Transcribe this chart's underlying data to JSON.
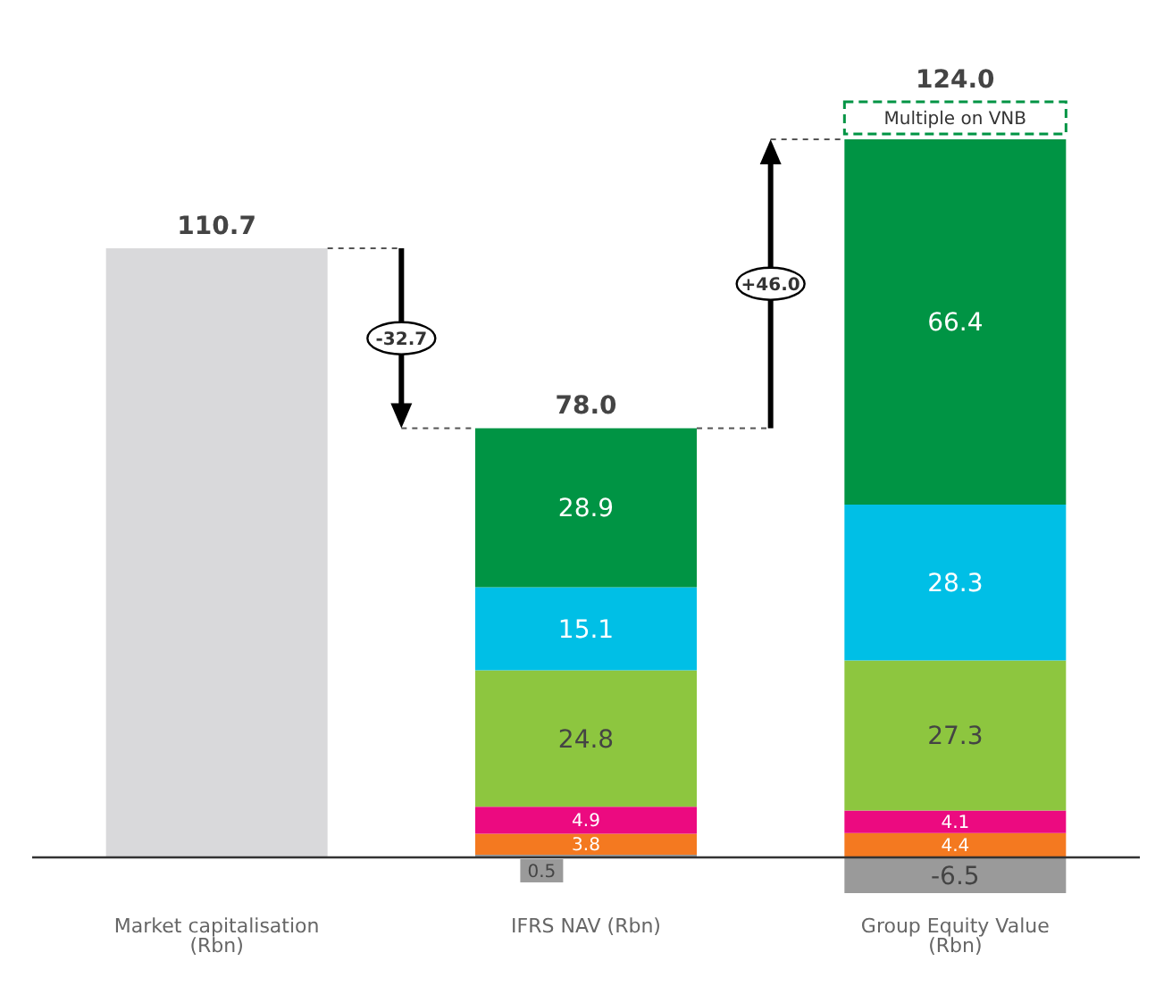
{
  "chart_data": {
    "type": "bar",
    "stacked": true,
    "categories": [
      "Market capitalisation (Rbn)",
      "IFRS NAV (Rbn)",
      "Group Equity Value (Rbn)"
    ],
    "series": [
      {
        "color": "#d9d9db",
        "values": [
          110.7,
          null,
          null
        ],
        "value_labels": [
          null,
          null,
          null
        ]
      },
      {
        "color": "#9a9a9a",
        "values": [
          null,
          0.5,
          -6.5
        ],
        "value_labels": [
          null,
          "0.5",
          "-6.5"
        ]
      },
      {
        "color": "#f47920",
        "values": [
          null,
          3.8,
          4.4
        ],
        "value_labels": [
          null,
          "3.8",
          "4.4"
        ]
      },
      {
        "color": "#ec0a80",
        "values": [
          null,
          4.9,
          4.1
        ],
        "value_labels": [
          null,
          "4.9",
          "4.1"
        ]
      },
      {
        "color": "#8dc63f",
        "values": [
          null,
          24.8,
          27.3
        ],
        "value_labels": [
          null,
          "24.8",
          "27.3"
        ]
      },
      {
        "color": "#00bfe6",
        "values": [
          null,
          15.1,
          28.3
        ],
        "value_labels": [
          null,
          "15.1",
          "28.3"
        ]
      },
      {
        "color": "#009444",
        "values": [
          null,
          28.9,
          66.4
        ],
        "value_labels": [
          null,
          "28.9",
          "66.4"
        ]
      }
    ],
    "totals": [
      "110.7",
      "78.0",
      "124.0"
    ],
    "annotations": [
      "-32.7",
      "+46.0",
      "Multiple on VNB"
    ]
  }
}
